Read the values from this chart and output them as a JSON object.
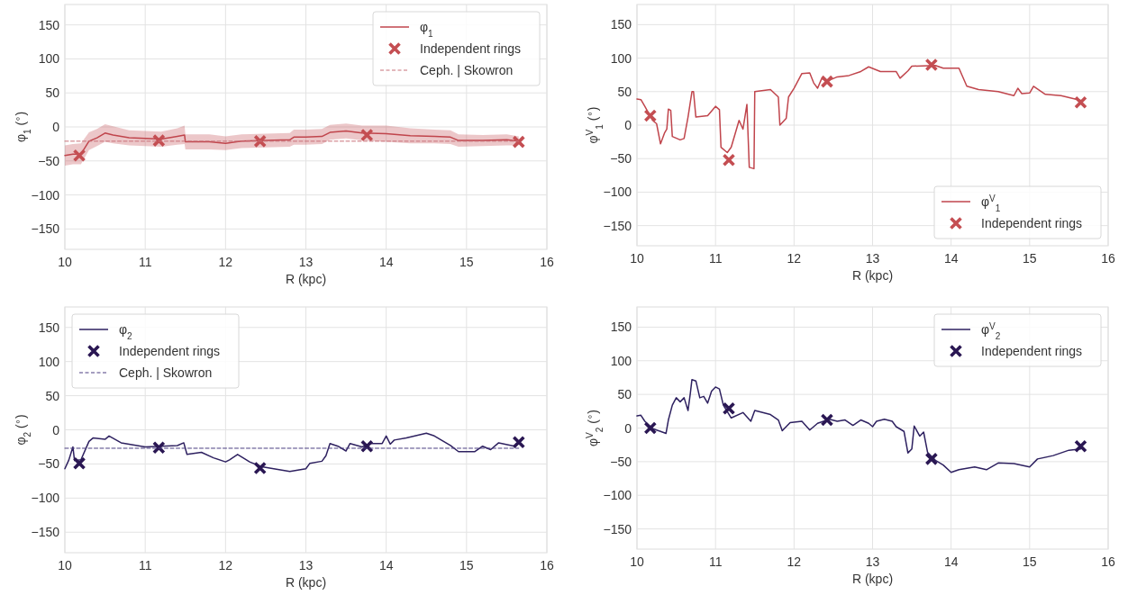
{
  "chart_data": [
    {
      "type": "line",
      "xlabel": "R (kpc)",
      "ylabel": "φ$_{1}$ ($^{∘}$)",
      "xlim": [
        10,
        16
      ],
      "xticks": [
        10,
        11,
        12,
        13,
        14,
        15,
        16
      ],
      "ylim": [
        -180,
        180
      ],
      "yticks": [
        -150,
        -100,
        -50,
        0,
        50,
        100,
        150
      ],
      "grid": true,
      "legend": "top right",
      "series": [
        {
          "name": "φ$_{1}$",
          "color": "#c0454c",
          "x": [
            10,
            10.1,
            10.2,
            10.3,
            10.4,
            10.5,
            10.6,
            10.8,
            11,
            11.2,
            11.4,
            11.49,
            11.5,
            11.8,
            12,
            12.2,
            12.5,
            12.8,
            12.85,
            13,
            13.2,
            13.3,
            13.5,
            13.7,
            14,
            14.3,
            14.6,
            14.8,
            14.9,
            15.2,
            15.5,
            15.65
          ],
          "values": [
            -42,
            -40,
            -40,
            -21,
            -16,
            -9,
            -12,
            -16,
            -17,
            -18,
            -14,
            -12,
            -22,
            -22,
            -24,
            -21,
            -20,
            -19,
            -15,
            -15,
            -14,
            -8,
            -6,
            -9,
            -10,
            -13,
            -14,
            -15,
            -20,
            -20,
            -19,
            -21
          ],
          "lower": [
            -57,
            -55,
            -55,
            -34,
            -28,
            -22,
            -24,
            -27,
            -28,
            -29,
            -26,
            -25,
            -33,
            -33,
            -34,
            -31,
            -30,
            -29,
            -26,
            -26,
            -25,
            -19,
            -17,
            -20,
            -22,
            -24,
            -24,
            -25,
            -29,
            -28,
            -27,
            -27
          ],
          "upper": [
            -27,
            -25,
            -24,
            -8,
            -3,
            4,
            1,
            -5,
            -6,
            -7,
            -2,
            2,
            -11,
            -11,
            -14,
            -11,
            -10,
            -9,
            -4,
            -4,
            -3,
            3,
            5,
            2,
            2,
            -2,
            -4,
            -5,
            -11,
            -12,
            -11,
            -14
          ]
        },
        {
          "name": "Independent rings",
          "type": "scatter",
          "marker": "cross",
          "color": "#c44e52",
          "x": [
            10.18,
            11.17,
            12.43,
            13.76,
            15.65
          ],
          "values": [
            -42,
            -20,
            -21,
            -12,
            -22
          ]
        },
        {
          "name": "Ceph. | Skowron",
          "type": "line",
          "line_style": "dashed",
          "color": "#c87078",
          "x": [
            10,
            15.65
          ],
          "values": [
            -21,
            -21
          ]
        }
      ]
    },
    {
      "type": "line",
      "xlabel": "R (kpc)",
      "ylabel": "φ$^{V}$$_{1}$ ($^{∘}$)",
      "xlim": [
        10,
        16
      ],
      "xticks": [
        10,
        11,
        12,
        13,
        14,
        15,
        16
      ],
      "ylim": [
        -180,
        180
      ],
      "yticks": [
        -150,
        -100,
        -50,
        0,
        50,
        100,
        150
      ],
      "grid": true,
      "legend": "bottom right",
      "series": [
        {
          "name": "φ$^{V}$$_{1}$",
          "color": "#c0454c",
          "x": [
            10,
            10.05,
            10.1,
            10.2,
            10.25,
            10.3,
            10.35,
            10.38,
            10.4,
            10.43,
            10.45,
            10.55,
            10.6,
            10.65,
            10.7,
            10.72,
            10.75,
            10.9,
            11,
            11.05,
            11.07,
            11.15,
            11.2,
            11.3,
            11.35,
            11.4,
            11.43,
            11.49,
            11.5,
            11.7,
            11.8,
            11.82,
            11.9,
            11.93,
            12,
            12.1,
            12.2,
            12.25,
            12.3,
            12.35,
            12.45,
            12.55,
            12.7,
            12.85,
            12.95,
            13.1,
            13.3,
            13.35,
            13.45,
            13.5,
            13.8,
            13.9,
            14.1,
            14.2,
            14.35,
            14.6,
            14.8,
            14.85,
            14.9,
            15,
            15.05,
            15.2,
            15.4,
            15.65
          ],
          "values": [
            39,
            38,
            28,
            7,
            2,
            -28,
            -12,
            -6,
            24,
            22,
            -17,
            -22,
            -20,
            12,
            50,
            50,
            12,
            14,
            28,
            23,
            -33,
            -41,
            -33,
            7,
            -6,
            31,
            -63,
            -65,
            50,
            53,
            42,
            0,
            10,
            42,
            55,
            77,
            78,
            63,
            55,
            69,
            67,
            72,
            74,
            80,
            87,
            80,
            80,
            70,
            81,
            88,
            89,
            85,
            85,
            58,
            53,
            50,
            44,
            55,
            47,
            48,
            58,
            46,
            44,
            37
          ]
        },
        {
          "name": "Independent rings",
          "type": "scatter",
          "marker": "cross",
          "color": "#c44e52",
          "x": [
            10.17,
            11.17,
            12.42,
            13.75,
            15.65
          ],
          "values": [
            14,
            -52,
            65,
            90,
            34
          ]
        }
      ]
    },
    {
      "type": "line",
      "xlabel": "R (kpc)",
      "ylabel": "φ$_{2}$ ($^{∘}$)",
      "xlim": [
        10,
        16
      ],
      "xticks": [
        10,
        11,
        12,
        13,
        14,
        15,
        16
      ],
      "ylim": [
        -180,
        180
      ],
      "yticks": [
        -150,
        -100,
        -50,
        0,
        50,
        100,
        150
      ],
      "grid": true,
      "legend": "top left",
      "series": [
        {
          "name": "φ$_{2}$",
          "color": "#2e2160",
          "x": [
            10,
            10.05,
            10.1,
            10.12,
            10.2,
            10.3,
            10.35,
            10.5,
            10.55,
            10.7,
            10.9,
            11,
            11.2,
            11.4,
            11.48,
            11.52,
            11.7,
            11.85,
            12,
            12.05,
            12.15,
            12.3,
            12.45,
            12.6,
            12.8,
            13,
            13.05,
            13.2,
            13.25,
            13.3,
            13.4,
            13.5,
            13.55,
            13.7,
            13.8,
            13.95,
            14,
            14.05,
            14.1,
            14.25,
            14.5,
            14.6,
            14.8,
            14.9,
            15.1,
            15.2,
            15.3,
            15.4,
            15.6
          ],
          "values": [
            -57,
            -44,
            -25,
            -45,
            -44,
            -17,
            -12,
            -14,
            -9,
            -19,
            -23,
            -25,
            -24,
            -23,
            -19,
            -36,
            -33,
            -41,
            -47,
            -44,
            -36,
            -47,
            -54,
            -57,
            -61,
            -57,
            -49,
            -46,
            -38,
            -20,
            -24,
            -31,
            -20,
            -25,
            -20,
            -20,
            -9,
            -21,
            -15,
            -12,
            -5,
            -9,
            -23,
            -32,
            -32,
            -24,
            -29,
            -19,
            -24
          ]
        },
        {
          "name": "Independent rings",
          "type": "scatter",
          "marker": "cross",
          "color": "#2a1753",
          "x": [
            10.18,
            11.17,
            12.43,
            13.76,
            15.65
          ],
          "values": [
            -49,
            -26,
            -56,
            -24,
            -18
          ]
        },
        {
          "name": "Ceph. | Skowron",
          "type": "line",
          "line_style": "dashed",
          "color": "#4a3d80",
          "x": [
            10,
            15.65
          ],
          "values": [
            -27,
            -27
          ]
        }
      ]
    },
    {
      "type": "line",
      "xlabel": "R (kpc)",
      "ylabel": "φ$^{V}$$_{2}$ ($^{∘}$)",
      "xlim": [
        10,
        16
      ],
      "xticks": [
        10,
        11,
        12,
        13,
        14,
        15,
        16
      ],
      "ylim": [
        -180,
        180
      ],
      "yticks": [
        -150,
        -100,
        -50,
        0,
        50,
        100,
        150
      ],
      "grid": true,
      "legend": "top right",
      "series": [
        {
          "name": "φ$^{V}$$_{2}$",
          "color": "#2e2160",
          "x": [
            10,
            10.05,
            10.1,
            10.2,
            10.3,
            10.37,
            10.4,
            10.45,
            10.5,
            10.55,
            10.6,
            10.65,
            10.68,
            10.7,
            10.75,
            10.8,
            10.85,
            10.9,
            10.95,
            11,
            11.05,
            11.1,
            11.2,
            11.35,
            11.45,
            11.5,
            11.7,
            11.8,
            11.85,
            11.95,
            12.1,
            12.2,
            12.3,
            12.45,
            12.55,
            12.65,
            12.75,
            12.85,
            12.95,
            13,
            13.05,
            13.15,
            13.25,
            13.3,
            13.4,
            13.45,
            13.5,
            13.53,
            13.6,
            13.65,
            13.7,
            13.8,
            13.9,
            14,
            14.1,
            14.3,
            14.45,
            14.6,
            14.8,
            15,
            15.1,
            15.3,
            15.5,
            15.65
          ],
          "values": [
            18,
            19,
            10,
            -1,
            -5,
            -8,
            12,
            34,
            45,
            39,
            45,
            26,
            52,
            72,
            70,
            45,
            47,
            37,
            55,
            61,
            58,
            34,
            15,
            23,
            10,
            26,
            20,
            12,
            -4,
            8,
            10,
            -3,
            7,
            13,
            10,
            12,
            4,
            12,
            7,
            2,
            10,
            13,
            10,
            2,
            -5,
            -37,
            -31,
            3,
            -12,
            -6,
            -36,
            -48,
            -55,
            -66,
            -62,
            -58,
            -62,
            -52,
            -53,
            -58,
            -46,
            -41,
            -33,
            -31
          ]
        },
        {
          "name": "Independent rings",
          "type": "scatter",
          "marker": "cross",
          "color": "#2a1753",
          "x": [
            10.17,
            11.17,
            12.42,
            13.75,
            15.65
          ],
          "values": [
            0,
            29,
            12,
            -46,
            -27
          ]
        }
      ]
    }
  ]
}
